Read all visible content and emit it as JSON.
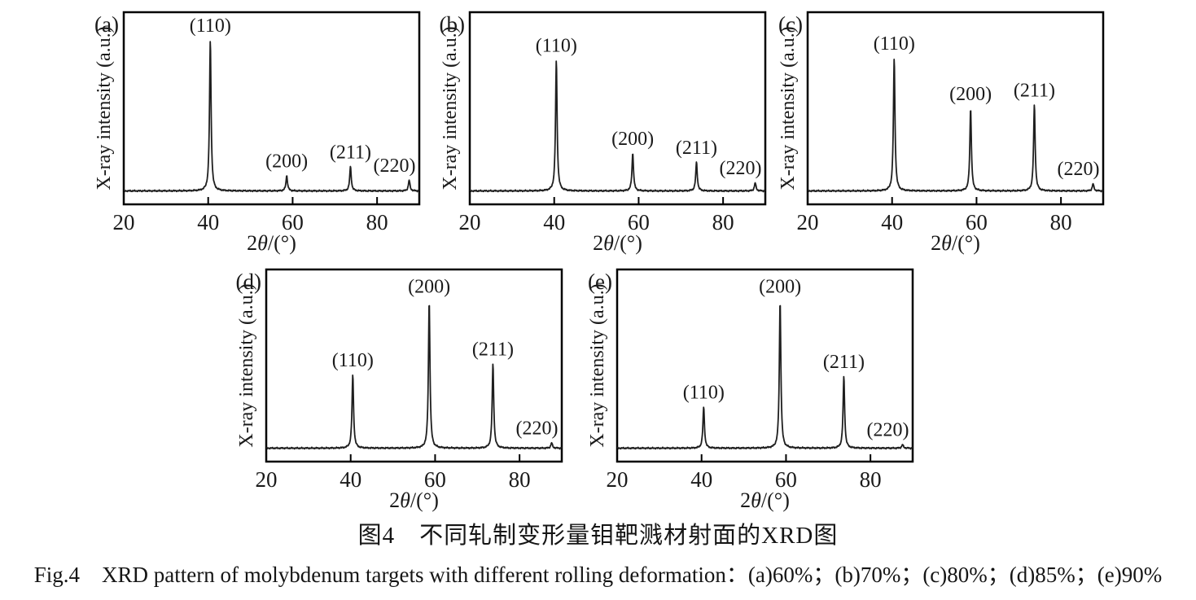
{
  "figure": {
    "caption_zh": "图4　不同轧制变形量钼靶溅材射面的XRD图",
    "caption_en": "Fig.4　XRD pattern of molybdenum targets with different rolling deformation：(a)60%；(b)70%；(c)80%；(d)85%；(e)90%"
  },
  "colors": {
    "trace": "#1f1f1f",
    "axis": "#000000",
    "text": "#1a1a1a",
    "background": "#ffffff"
  },
  "chart_data": [
    {
      "type": "line",
      "panel_label": "(a)",
      "deformation": "60%",
      "xlabel": "2θ/(°)",
      "ylabel": "X-ray intensity (a.u.)",
      "x_range": [
        20,
        90
      ],
      "xticks": [
        20,
        40,
        60,
        80
      ],
      "grid": false,
      "legend": "none",
      "peaks": [
        {
          "label": "(110)",
          "two_theta": 40.5,
          "rel_intensity": 0.84
        },
        {
          "label": "(200)",
          "two_theta": 58.6,
          "rel_intensity": 0.085
        },
        {
          "label": "(211)",
          "two_theta": 73.7,
          "rel_intensity": 0.135
        },
        {
          "label": "(220)",
          "two_theta": 87.6,
          "rel_intensity": 0.06
        }
      ]
    },
    {
      "type": "line",
      "panel_label": "(b)",
      "deformation": "70%",
      "xlabel": "2θ/(°)",
      "ylabel": "X-ray intensity (a.u.)",
      "x_range": [
        20,
        90
      ],
      "xticks": [
        20,
        40,
        60,
        80
      ],
      "grid": false,
      "legend": "none",
      "peaks": [
        {
          "label": "(110)",
          "two_theta": 40.5,
          "rel_intensity": 0.73
        },
        {
          "label": "(200)",
          "two_theta": 58.6,
          "rel_intensity": 0.21
        },
        {
          "label": "(211)",
          "two_theta": 73.7,
          "rel_intensity": 0.16
        },
        {
          "label": "(220)",
          "two_theta": 87.6,
          "rel_intensity": 0.045
        }
      ]
    },
    {
      "type": "line",
      "panel_label": "(c)",
      "deformation": "80%",
      "xlabel": "2θ/(°)",
      "ylabel": "X-ray intensity (a.u.)",
      "x_range": [
        20,
        90
      ],
      "xticks": [
        20,
        40,
        60,
        80
      ],
      "grid": false,
      "legend": "none",
      "peaks": [
        {
          "label": "(110)",
          "two_theta": 40.5,
          "rel_intensity": 0.74
        },
        {
          "label": "(200)",
          "two_theta": 58.6,
          "rel_intensity": 0.46
        },
        {
          "label": "(211)",
          "two_theta": 73.7,
          "rel_intensity": 0.48
        },
        {
          "label": "(220)",
          "two_theta": 87.6,
          "rel_intensity": 0.04
        }
      ]
    },
    {
      "type": "line",
      "panel_label": "(d)",
      "deformation": "85%",
      "xlabel": "2θ/(°)",
      "ylabel": "X-ray intensity (a.u.)",
      "x_range": [
        20,
        90
      ],
      "xticks": [
        20,
        40,
        60,
        80
      ],
      "grid": false,
      "legend": "none",
      "peaks": [
        {
          "label": "(110)",
          "two_theta": 40.5,
          "rel_intensity": 0.41
        },
        {
          "label": "(200)",
          "two_theta": 58.6,
          "rel_intensity": 0.82
        },
        {
          "label": "(211)",
          "two_theta": 73.7,
          "rel_intensity": 0.47
        },
        {
          "label": "(220)",
          "two_theta": 87.6,
          "rel_intensity": 0.03
        }
      ]
    },
    {
      "type": "line",
      "panel_label": "(e)",
      "deformation": "90%",
      "xlabel": "2θ/(°)",
      "ylabel": "X-ray intensity (a.u.)",
      "x_range": [
        20,
        90
      ],
      "xticks": [
        20,
        40,
        60,
        80
      ],
      "grid": false,
      "legend": "none",
      "peaks": [
        {
          "label": "(110)",
          "two_theta": 40.5,
          "rel_intensity": 0.23
        },
        {
          "label": "(200)",
          "two_theta": 58.6,
          "rel_intensity": 0.82
        },
        {
          "label": "(211)",
          "two_theta": 73.7,
          "rel_intensity": 0.4
        },
        {
          "label": "(220)",
          "two_theta": 87.6,
          "rel_intensity": 0.02
        }
      ]
    }
  ]
}
